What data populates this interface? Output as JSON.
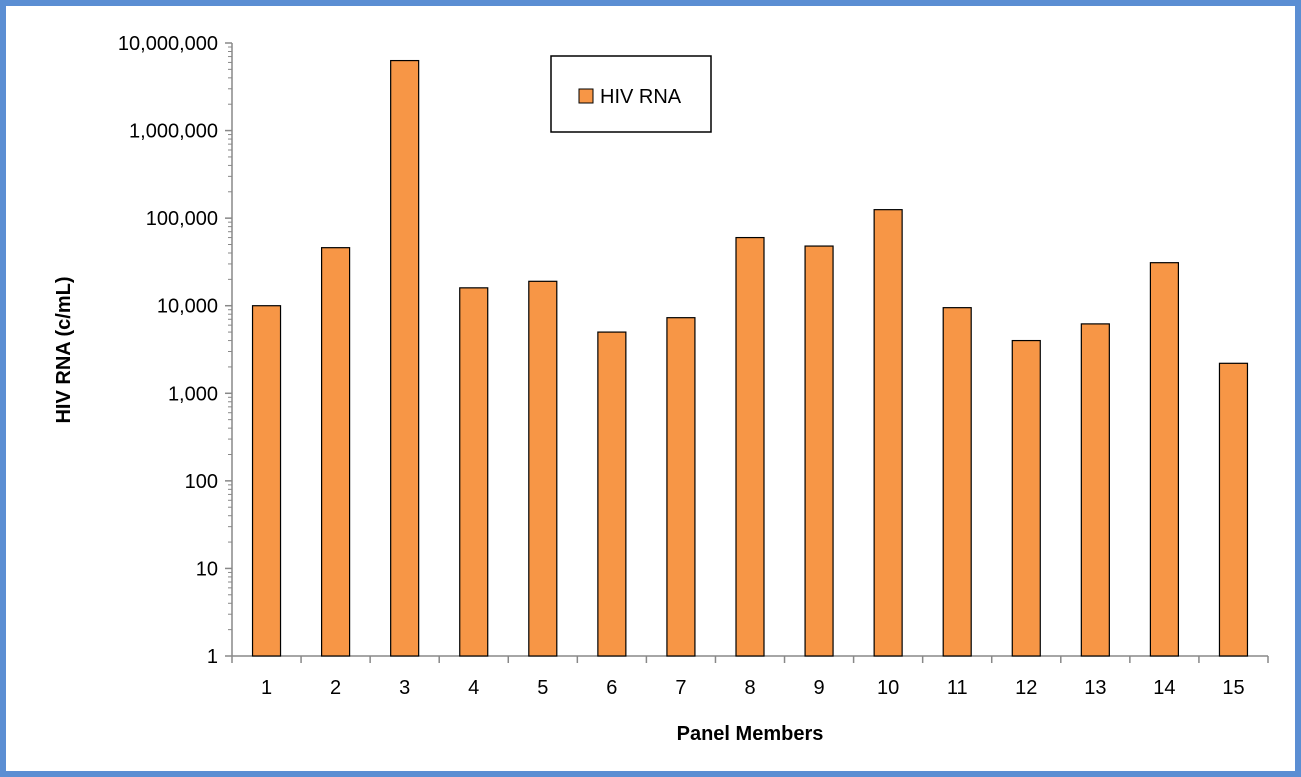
{
  "chart_data": {
    "type": "bar",
    "title": "",
    "xlabel": "Panel Members",
    "ylabel": "HIV RNA (c/mL)",
    "yscale": "log",
    "ylim": [
      1,
      10000000
    ],
    "ytick_values": [
      1,
      10,
      100,
      1000,
      10000,
      100000,
      1000000,
      10000000
    ],
    "ytick_labels": [
      "1",
      "10",
      "100",
      "1,000",
      "10,000",
      "100,000",
      "1,000,000",
      "10,000,000"
    ],
    "categories": [
      "1",
      "2",
      "3",
      "4",
      "5",
      "6",
      "7",
      "8",
      "9",
      "10",
      "11",
      "12",
      "13",
      "14",
      "15"
    ],
    "series": [
      {
        "name": "HIV RNA",
        "color": "#f79646",
        "values": [
          10000,
          46000,
          6300000,
          16000,
          19000,
          5000,
          7300,
          60000,
          48000,
          125000,
          9500,
          4000,
          6200,
          31000,
          2200
        ]
      }
    ],
    "legend": {
      "position": "top-center",
      "entries": [
        "HIV RNA"
      ]
    },
    "grid": false
  },
  "colors": {
    "frame": "#5b8ed3",
    "bar_fill": "#f79646",
    "bar_stroke": "#000000"
  }
}
